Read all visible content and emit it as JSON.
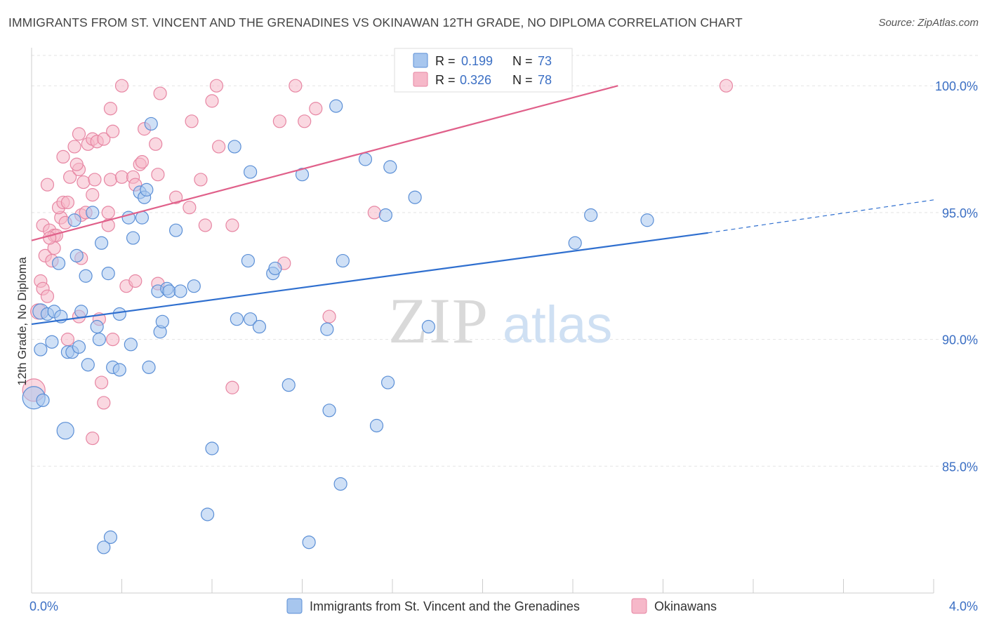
{
  "header": {
    "title": "IMMIGRANTS FROM ST. VINCENT AND THE GRENADINES VS OKINAWAN 12TH GRADE, NO DIPLOMA CORRELATION CHART",
    "source": "Source: ZipAtlas.com"
  },
  "watermark": {
    "zip": "ZIP",
    "atlas": "atlas"
  },
  "colors": {
    "blue_fill": "#a7c6ee",
    "blue_stroke": "#5b8fd6",
    "blue_line": "#2f6fcf",
    "pink_fill": "#f6b8c9",
    "pink_stroke": "#e786a3",
    "pink_line": "#e0608a",
    "tick_label": "#3b6fc4",
    "grid": "#e3e3e3"
  },
  "chart_data": {
    "type": "scatter",
    "xlabel": "",
    "ylabel": "12th Grade, No Diploma",
    "xlim": [
      0,
      4.0
    ],
    "ylim": [
      80.0,
      101.5
    ],
    "x_tick_labels": [
      "0.0%",
      "4.0%"
    ],
    "y_ticks": [
      85.0,
      90.0,
      95.0,
      100.0
    ],
    "y_tick_labels": [
      "85.0%",
      "90.0%",
      "95.0%",
      "100.0%"
    ],
    "grid": true,
    "legend_placement": "bottom",
    "stats_box_placement": "top-center",
    "series": [
      {
        "name": "Immigrants from St. Vincent and the Grenadines",
        "color": "blue",
        "stats": {
          "r_label": "R =",
          "r_value": "0.199",
          "n_label": "N =",
          "n_value": "73"
        },
        "trend": {
          "x_start": 0.0,
          "y_start": 90.6,
          "x_solid_end": 3.0,
          "y_solid_end": 94.2,
          "x_dash_end": 4.0,
          "y_dash_end": 95.5
        },
        "points": [
          {
            "x": 0.01,
            "y": 87.7,
            "s": 16
          },
          {
            "x": 0.05,
            "y": 87.6,
            "s": 9
          },
          {
            "x": 0.15,
            "y": 86.4,
            "s": 12
          },
          {
            "x": 0.04,
            "y": 91.1,
            "s": 11
          },
          {
            "x": 0.07,
            "y": 91.0,
            "s": 9
          },
          {
            "x": 0.1,
            "y": 91.1,
            "s": 9
          },
          {
            "x": 0.13,
            "y": 90.9,
            "s": 9
          },
          {
            "x": 0.04,
            "y": 89.6,
            "s": 9
          },
          {
            "x": 0.09,
            "y": 89.9,
            "s": 9
          },
          {
            "x": 0.16,
            "y": 89.5,
            "s": 9
          },
          {
            "x": 0.18,
            "y": 89.5,
            "s": 9
          },
          {
            "x": 0.21,
            "y": 89.7,
            "s": 9
          },
          {
            "x": 0.22,
            "y": 91.1,
            "s": 9
          },
          {
            "x": 0.25,
            "y": 89.0,
            "s": 9
          },
          {
            "x": 0.29,
            "y": 90.5,
            "s": 9
          },
          {
            "x": 0.3,
            "y": 90.0,
            "s": 9
          },
          {
            "x": 0.36,
            "y": 88.9,
            "s": 9
          },
          {
            "x": 0.39,
            "y": 88.8,
            "s": 9
          },
          {
            "x": 0.44,
            "y": 89.8,
            "s": 9
          },
          {
            "x": 0.52,
            "y": 88.9,
            "s": 9
          },
          {
            "x": 0.57,
            "y": 90.3,
            "s": 9
          },
          {
            "x": 0.58,
            "y": 90.7,
            "s": 9
          },
          {
            "x": 0.12,
            "y": 93.0,
            "s": 9
          },
          {
            "x": 0.2,
            "y": 93.3,
            "s": 9
          },
          {
            "x": 0.24,
            "y": 92.5,
            "s": 9
          },
          {
            "x": 0.31,
            "y": 93.8,
            "s": 9
          },
          {
            "x": 0.34,
            "y": 92.6,
            "s": 9
          },
          {
            "x": 0.45,
            "y": 94.0,
            "s": 9
          },
          {
            "x": 0.43,
            "y": 94.8,
            "s": 9
          },
          {
            "x": 0.49,
            "y": 94.8,
            "s": 9
          },
          {
            "x": 0.19,
            "y": 94.7,
            "s": 9
          },
          {
            "x": 0.27,
            "y": 95.0,
            "s": 9
          },
          {
            "x": 0.48,
            "y": 95.8,
            "s": 9
          },
          {
            "x": 0.5,
            "y": 95.6,
            "s": 9
          },
          {
            "x": 0.51,
            "y": 95.9,
            "s": 9
          },
          {
            "x": 0.56,
            "y": 91.9,
            "s": 9
          },
          {
            "x": 0.6,
            "y": 92.0,
            "s": 9
          },
          {
            "x": 0.61,
            "y": 91.9,
            "s": 9
          },
          {
            "x": 0.66,
            "y": 91.9,
            "s": 9
          },
          {
            "x": 0.72,
            "y": 92.1,
            "s": 9
          },
          {
            "x": 0.64,
            "y": 94.3,
            "s": 9
          },
          {
            "x": 0.53,
            "y": 98.5,
            "s": 9
          },
          {
            "x": 0.9,
            "y": 97.6,
            "s": 9
          },
          {
            "x": 0.96,
            "y": 93.1,
            "s": 9
          },
          {
            "x": 0.91,
            "y": 90.8,
            "s": 9
          },
          {
            "x": 0.97,
            "y": 90.8,
            "s": 9
          },
          {
            "x": 1.01,
            "y": 90.5,
            "s": 9
          },
          {
            "x": 0.97,
            "y": 96.6,
            "s": 9
          },
          {
            "x": 1.07,
            "y": 92.6,
            "s": 9
          },
          {
            "x": 1.08,
            "y": 92.8,
            "s": 9
          },
          {
            "x": 1.2,
            "y": 96.5,
            "s": 9
          },
          {
            "x": 1.31,
            "y": 90.4,
            "s": 9
          },
          {
            "x": 1.32,
            "y": 87.2,
            "s": 9
          },
          {
            "x": 1.38,
            "y": 93.1,
            "s": 9
          },
          {
            "x": 1.35,
            "y": 99.2,
            "s": 9
          },
          {
            "x": 1.48,
            "y": 97.1,
            "s": 9
          },
          {
            "x": 1.57,
            "y": 94.9,
            "s": 9
          },
          {
            "x": 1.59,
            "y": 96.8,
            "s": 9
          },
          {
            "x": 1.58,
            "y": 88.3,
            "s": 9
          },
          {
            "x": 1.7,
            "y": 95.6,
            "s": 9
          },
          {
            "x": 1.76,
            "y": 90.5,
            "s": 9
          },
          {
            "x": 1.53,
            "y": 86.6,
            "s": 9
          },
          {
            "x": 1.37,
            "y": 84.3,
            "s": 9
          },
          {
            "x": 1.23,
            "y": 82.0,
            "s": 9
          },
          {
            "x": 1.14,
            "y": 88.2,
            "s": 9
          },
          {
            "x": 0.8,
            "y": 85.7,
            "s": 9
          },
          {
            "x": 0.78,
            "y": 83.1,
            "s": 9
          },
          {
            "x": 0.35,
            "y": 82.2,
            "s": 9
          },
          {
            "x": 0.32,
            "y": 81.8,
            "s": 9
          },
          {
            "x": 2.48,
            "y": 94.9,
            "s": 9
          },
          {
            "x": 2.41,
            "y": 93.8,
            "s": 9
          },
          {
            "x": 2.73,
            "y": 94.7,
            "s": 9
          },
          {
            "x": 0.39,
            "y": 91.0,
            "s": 9
          }
        ]
      },
      {
        "name": "Okinawans",
        "color": "pink",
        "stats": {
          "r_label": "R =",
          "r_value": "0.326",
          "n_label": "N =",
          "n_value": "78"
        },
        "trend": {
          "x_start": 0.0,
          "y_start": 93.9,
          "x_solid_end": 2.6,
          "y_solid_end": 100.0,
          "x_dash_end": 2.6,
          "y_dash_end": 100.0
        },
        "points": [
          {
            "x": 0.01,
            "y": 88.0,
            "s": 16
          },
          {
            "x": 0.03,
            "y": 91.1,
            "s": 11
          },
          {
            "x": 0.04,
            "y": 92.3,
            "s": 9
          },
          {
            "x": 0.05,
            "y": 92.0,
            "s": 9
          },
          {
            "x": 0.07,
            "y": 91.7,
            "s": 9
          },
          {
            "x": 0.06,
            "y": 93.3,
            "s": 9
          },
          {
            "x": 0.09,
            "y": 93.1,
            "s": 9
          },
          {
            "x": 0.1,
            "y": 93.6,
            "s": 9
          },
          {
            "x": 0.05,
            "y": 94.5,
            "s": 9
          },
          {
            "x": 0.08,
            "y": 94.3,
            "s": 9
          },
          {
            "x": 0.1,
            "y": 94.1,
            "s": 9
          },
          {
            "x": 0.11,
            "y": 94.1,
            "s": 9
          },
          {
            "x": 0.13,
            "y": 94.8,
            "s": 9
          },
          {
            "x": 0.15,
            "y": 94.6,
            "s": 9
          },
          {
            "x": 0.12,
            "y": 95.2,
            "s": 9
          },
          {
            "x": 0.14,
            "y": 95.4,
            "s": 9
          },
          {
            "x": 0.16,
            "y": 95.4,
            "s": 9
          },
          {
            "x": 0.22,
            "y": 94.9,
            "s": 9
          },
          {
            "x": 0.24,
            "y": 95.0,
            "s": 9
          },
          {
            "x": 0.27,
            "y": 95.7,
            "s": 9
          },
          {
            "x": 0.07,
            "y": 96.1,
            "s": 9
          },
          {
            "x": 0.17,
            "y": 96.4,
            "s": 9
          },
          {
            "x": 0.21,
            "y": 96.7,
            "s": 9
          },
          {
            "x": 0.23,
            "y": 96.2,
            "s": 9
          },
          {
            "x": 0.28,
            "y": 96.3,
            "s": 9
          },
          {
            "x": 0.14,
            "y": 97.2,
            "s": 9
          },
          {
            "x": 0.19,
            "y": 97.6,
            "s": 9
          },
          {
            "x": 0.2,
            "y": 96.9,
            "s": 9
          },
          {
            "x": 0.25,
            "y": 97.7,
            "s": 9
          },
          {
            "x": 0.27,
            "y": 97.9,
            "s": 9
          },
          {
            "x": 0.21,
            "y": 98.1,
            "s": 9
          },
          {
            "x": 0.29,
            "y": 97.8,
            "s": 9
          },
          {
            "x": 0.32,
            "y": 97.9,
            "s": 9
          },
          {
            "x": 0.36,
            "y": 98.2,
            "s": 9
          },
          {
            "x": 0.35,
            "y": 99.1,
            "s": 9
          },
          {
            "x": 0.4,
            "y": 100.0,
            "s": 9
          },
          {
            "x": 0.34,
            "y": 95.0,
            "s": 9
          },
          {
            "x": 0.34,
            "y": 94.5,
            "s": 9
          },
          {
            "x": 0.35,
            "y": 96.3,
            "s": 9
          },
          {
            "x": 0.4,
            "y": 96.4,
            "s": 9
          },
          {
            "x": 0.45,
            "y": 96.4,
            "s": 9
          },
          {
            "x": 0.46,
            "y": 96.1,
            "s": 9
          },
          {
            "x": 0.48,
            "y": 96.9,
            "s": 9
          },
          {
            "x": 0.49,
            "y": 97.0,
            "s": 9
          },
          {
            "x": 0.5,
            "y": 98.3,
            "s": 9
          },
          {
            "x": 0.55,
            "y": 97.7,
            "s": 9
          },
          {
            "x": 0.56,
            "y": 96.5,
            "s": 9
          },
          {
            "x": 0.57,
            "y": 99.7,
            "s": 9
          },
          {
            "x": 0.64,
            "y": 95.6,
            "s": 9
          },
          {
            "x": 0.7,
            "y": 95.2,
            "s": 9
          },
          {
            "x": 0.71,
            "y": 98.6,
            "s": 9
          },
          {
            "x": 0.75,
            "y": 96.3,
            "s": 9
          },
          {
            "x": 0.77,
            "y": 94.5,
            "s": 9
          },
          {
            "x": 0.8,
            "y": 99.4,
            "s": 9
          },
          {
            "x": 0.82,
            "y": 100.0,
            "s": 9
          },
          {
            "x": 0.83,
            "y": 97.6,
            "s": 9
          },
          {
            "x": 0.89,
            "y": 94.5,
            "s": 9
          },
          {
            "x": 1.1,
            "y": 98.6,
            "s": 9
          },
          {
            "x": 1.12,
            "y": 93.0,
            "s": 9
          },
          {
            "x": 1.17,
            "y": 100.0,
            "s": 9
          },
          {
            "x": 1.21,
            "y": 98.6,
            "s": 9
          },
          {
            "x": 1.26,
            "y": 99.1,
            "s": 9
          },
          {
            "x": 1.32,
            "y": 90.9,
            "s": 9
          },
          {
            "x": 1.52,
            "y": 95.0,
            "s": 9
          },
          {
            "x": 0.42,
            "y": 92.1,
            "s": 9
          },
          {
            "x": 0.46,
            "y": 92.3,
            "s": 9
          },
          {
            "x": 0.56,
            "y": 92.2,
            "s": 9
          },
          {
            "x": 0.36,
            "y": 90.0,
            "s": 9
          },
          {
            "x": 0.22,
            "y": 93.2,
            "s": 9
          },
          {
            "x": 0.16,
            "y": 90.0,
            "s": 9
          },
          {
            "x": 0.21,
            "y": 90.9,
            "s": 9
          },
          {
            "x": 0.3,
            "y": 90.8,
            "s": 9
          },
          {
            "x": 0.31,
            "y": 88.3,
            "s": 9
          },
          {
            "x": 0.32,
            "y": 87.5,
            "s": 9
          },
          {
            "x": 0.27,
            "y": 86.1,
            "s": 9
          },
          {
            "x": 0.89,
            "y": 88.1,
            "s": 9
          },
          {
            "x": 3.08,
            "y": 100.0,
            "s": 9
          },
          {
            "x": 0.08,
            "y": 94.0,
            "s": 9
          }
        ]
      }
    ]
  }
}
